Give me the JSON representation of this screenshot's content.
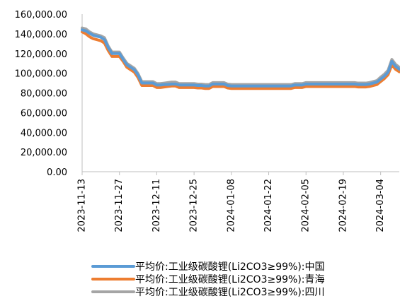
{
  "chart_data": {
    "type": "line",
    "title": "",
    "xlabel": "",
    "ylabel": "",
    "ylim": [
      0,
      160000
    ],
    "y_ticks": [
      "0.00",
      "20,000.00",
      "40,000.00",
      "60,000.00",
      "80,000.00",
      "100,000.00",
      "120,000.00",
      "140,000.00",
      "160,000.00"
    ],
    "x_tick_labels": [
      "2023-11-13",
      "2023-11-27",
      "2023-12-11",
      "2023-12-25",
      "2024-01-08",
      "2024-01-22",
      "2024-02-05",
      "2024-02-19",
      "2024-03-04"
    ],
    "x_tick_positions": [
      0,
      10,
      20,
      30,
      40,
      50,
      60,
      70,
      80
    ],
    "grid": false,
    "legend_position": "bottom",
    "series": [
      {
        "name": "平均价:工业级碳酸锂(Li2CO3≥99%):中国",
        "color": "#5B9BD5",
        "values": [
          144000,
          143000,
          140500,
          138500,
          137500,
          136500,
          134000,
          126000,
          120000,
          120000,
          120000,
          114000,
          108500,
          106000,
          103500,
          98000,
          90000,
          90000,
          90000,
          90000,
          88000,
          88000,
          88500,
          88500,
          89000,
          89000,
          88000,
          88000,
          88000,
          88000,
          88000,
          87500,
          87500,
          87000,
          87000,
          89000,
          89000,
          89000,
          89000,
          87500,
          87000,
          87000,
          87000,
          87000,
          87000,
          87000,
          87000,
          87000,
          87000,
          87000,
          87000,
          87000,
          87000,
          87000,
          87000,
          87000,
          87000,
          88000,
          88000,
          88000,
          89000,
          89000,
          89000,
          89000,
          89000,
          89000,
          89000,
          89000,
          89000,
          89000,
          89000,
          89000,
          89000,
          89000,
          88500,
          88500,
          88500,
          89000,
          90000,
          91000,
          94000,
          97000,
          101000,
          112000,
          107000,
          104000
        ]
      },
      {
        "name": "平均价:工业级碳酸锂(Li2CO3≥99%):青海",
        "color": "#ED7D31",
        "values": [
          142000,
          140000,
          137000,
          135000,
          134000,
          133000,
          130500,
          123000,
          117000,
          117000,
          117000,
          112000,
          106000,
          103500,
          101000,
          95500,
          87500,
          87500,
          87500,
          87500,
          85500,
          85500,
          86000,
          86500,
          87000,
          87000,
          85500,
          85500,
          85500,
          85500,
          85500,
          85000,
          85000,
          84500,
          84500,
          86500,
          86500,
          86500,
          86500,
          85000,
          84500,
          84500,
          84500,
          84500,
          84500,
          84500,
          84500,
          84500,
          84500,
          84500,
          84500,
          84500,
          84500,
          84500,
          84500,
          84500,
          84500,
          85500,
          85500,
          85500,
          86500,
          86500,
          86500,
          86500,
          86500,
          86500,
          86500,
          86500,
          86500,
          86500,
          86500,
          86500,
          86500,
          86500,
          86000,
          86000,
          86000,
          86500,
          87500,
          88500,
          91500,
          94500,
          98500,
          108500,
          104000,
          101500
        ]
      },
      {
        "name": "平均价:工业级碳酸锂(Li2CO3≥99%):四川",
        "color": "#A5A5A5",
        "values": [
          146000,
          145000,
          142000,
          140000,
          139000,
          138000,
          136000,
          127500,
          121500,
          121500,
          121500,
          115500,
          110000,
          107500,
          105000,
          99500,
          91500,
          91500,
          91500,
          91500,
          89500,
          89500,
          90000,
          90500,
          91000,
          91000,
          89500,
          89500,
          89500,
          89500,
          89500,
          89000,
          89000,
          88500,
          88500,
          90500,
          90500,
          90500,
          90500,
          89000,
          88500,
          88500,
          88500,
          88500,
          88500,
          88500,
          88500,
          88500,
          88500,
          88500,
          88500,
          88500,
          88500,
          88500,
          88500,
          88500,
          88500,
          89500,
          89500,
          89500,
          90500,
          90500,
          90500,
          90500,
          90500,
          90500,
          90500,
          90500,
          90500,
          90500,
          90500,
          90500,
          90500,
          90500,
          90000,
          90000,
          90000,
          90500,
          91500,
          92500,
          96000,
          99000,
          103000,
          114000,
          109000,
          106000
        ]
      }
    ]
  }
}
